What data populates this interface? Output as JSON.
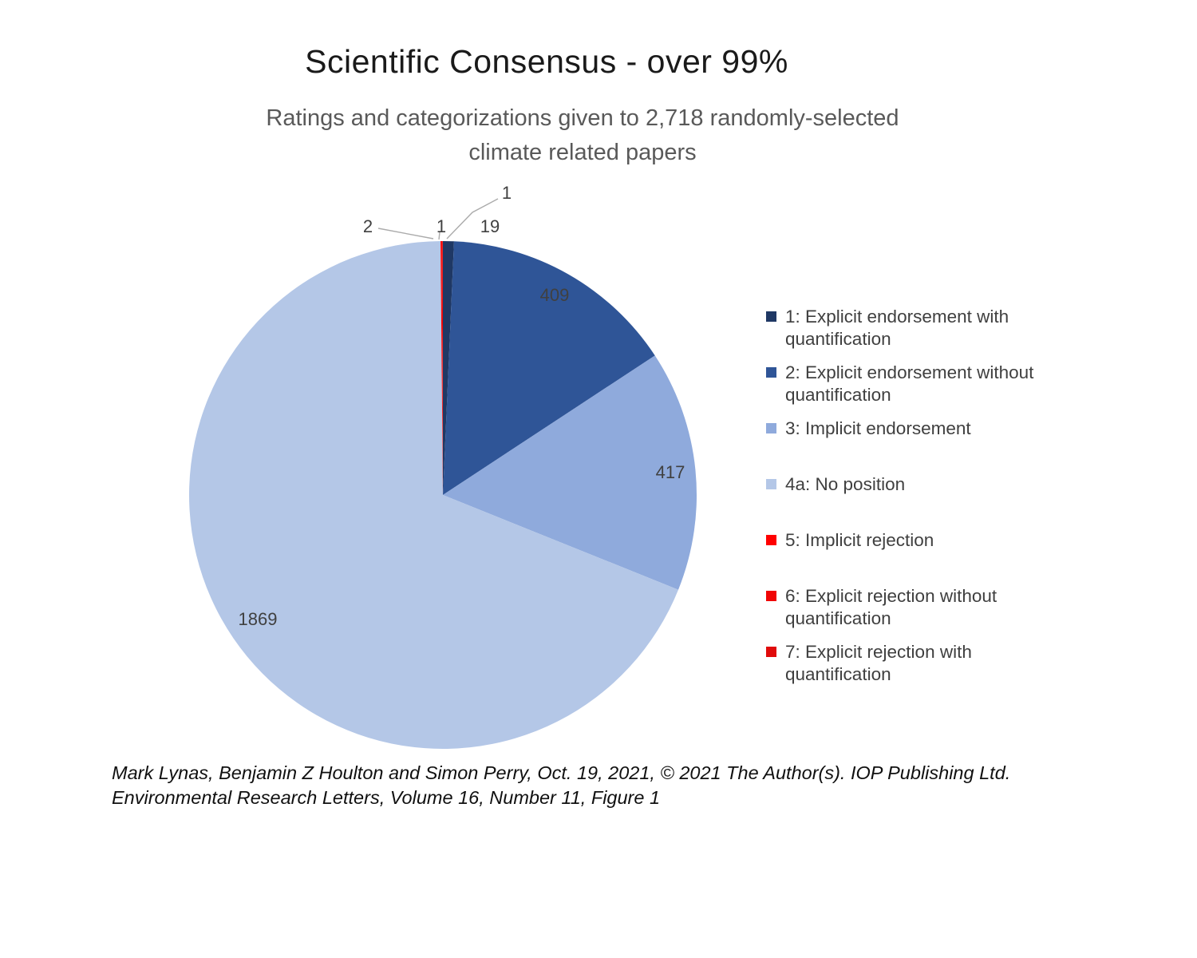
{
  "title": "Scientific Consensus - over 99%",
  "subtitle_line1": "Ratings and categorizations given to 2,718 randomly-selected",
  "subtitle_line2": "climate related papers",
  "chart_data": {
    "type": "pie",
    "title": "Scientific Consensus - over 99%",
    "subtitle": "Ratings and categorizations given to 2,718 randomly-selected climate related papers",
    "total": 2718,
    "start_angle": "top",
    "direction": "clockwise",
    "legend_position": "right",
    "slices": [
      {
        "name": "explicit-endorsement-with-quantification",
        "label": "1: Explicit endorsement with quantification",
        "value": 19,
        "color": "#1f3864",
        "data_label": "19"
      },
      {
        "name": "explicit-endorsement-without-quantification",
        "label": "2: Explicit endorsement without quantification",
        "value": 409,
        "color": "#2f5597",
        "data_label": "409"
      },
      {
        "name": "implicit-endorsement",
        "label": "3: Implicit endorsement",
        "value": 417,
        "color": "#8faadc",
        "data_label": "417"
      },
      {
        "name": "no-position",
        "label": "4a: No position",
        "value": 1869,
        "color": "#b4c7e7",
        "data_label": "1869"
      },
      {
        "name": "implicit-rejection",
        "label": "5: Implicit rejection",
        "value": 2,
        "color": "#ff0000",
        "data_label": "2"
      },
      {
        "name": "explicit-rejection-without-quantification",
        "label": "6: Explicit rejection without quantification",
        "value": 1,
        "color": "#f00505",
        "data_label": "1"
      },
      {
        "name": "explicit-rejection-with-quantification",
        "label": "7: Explicit rejection with quantification",
        "value": 1,
        "color": "#e00b0b",
        "data_label": "1"
      }
    ]
  },
  "footer": {
    "line1": "Mark Lynas, Benjamin Z Houlton and Simon Perry, Oct. 19, 2021, © 2021 The Author(s). IOP Publishing Ltd.",
    "line2": "Environmental Research Letters, Volume 16, Number 11, Figure 1"
  }
}
